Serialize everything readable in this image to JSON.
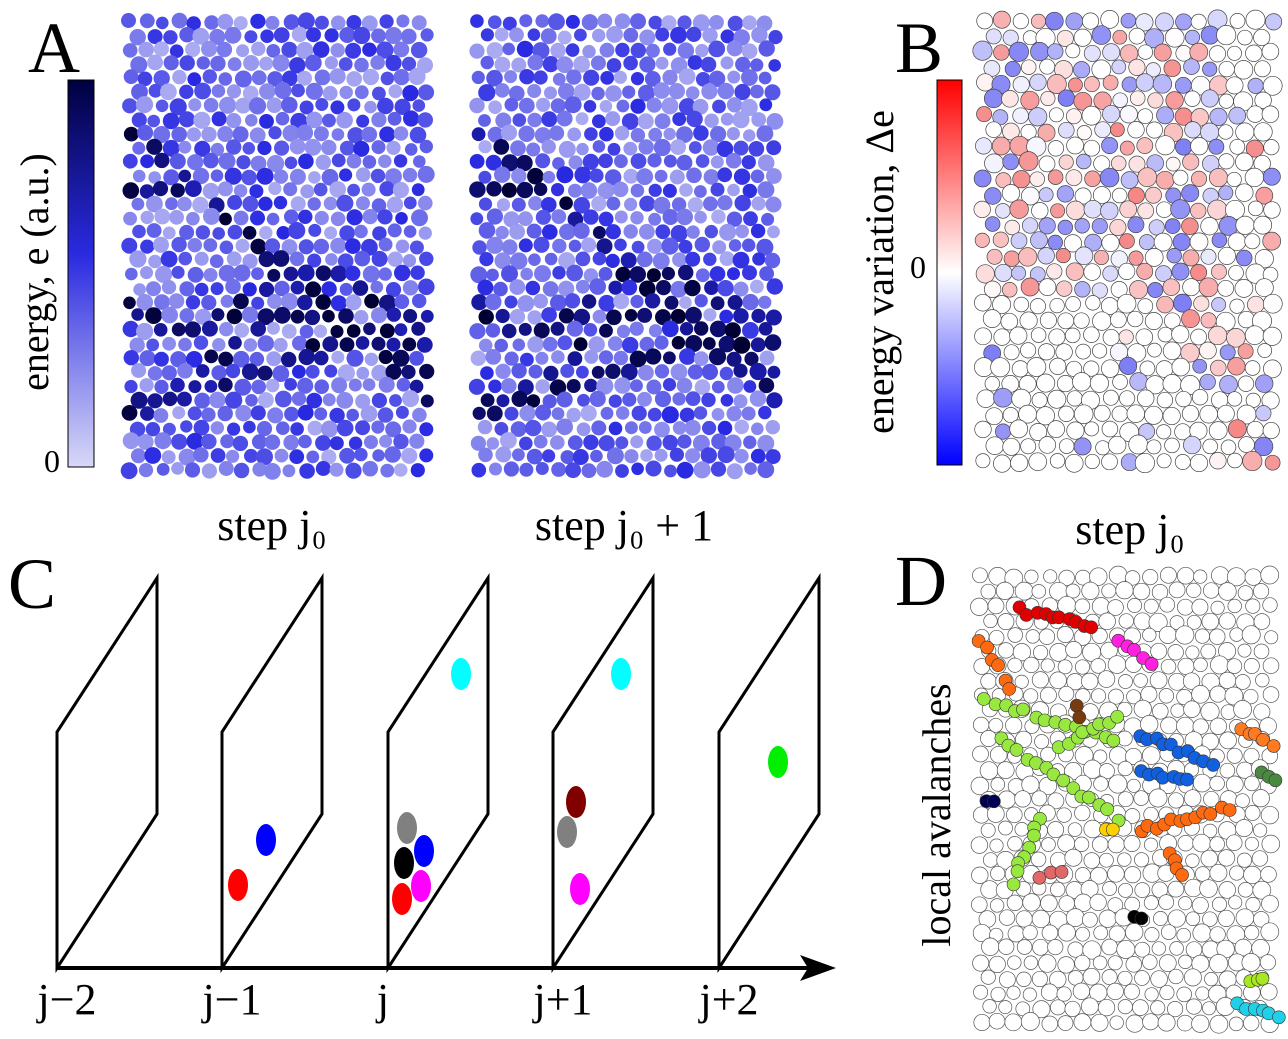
{
  "panel_a": {
    "label": "A",
    "colorbar_label": "energy, e (a.u.)",
    "colorbar_zero": "0",
    "caption_left": "step j₀",
    "caption_right": "step j₀ + 1"
  },
  "panel_b": {
    "label": "B",
    "colorbar_label": "energy variation, Δe",
    "colorbar_zero": "0",
    "caption": "step j₀"
  },
  "panel_c": {
    "label": "C",
    "steps": [
      "j−2",
      "j−1",
      "j",
      "j+1",
      "j+2"
    ]
  },
  "panel_d": {
    "label": "D",
    "side_label": "local avalanches"
  }
}
